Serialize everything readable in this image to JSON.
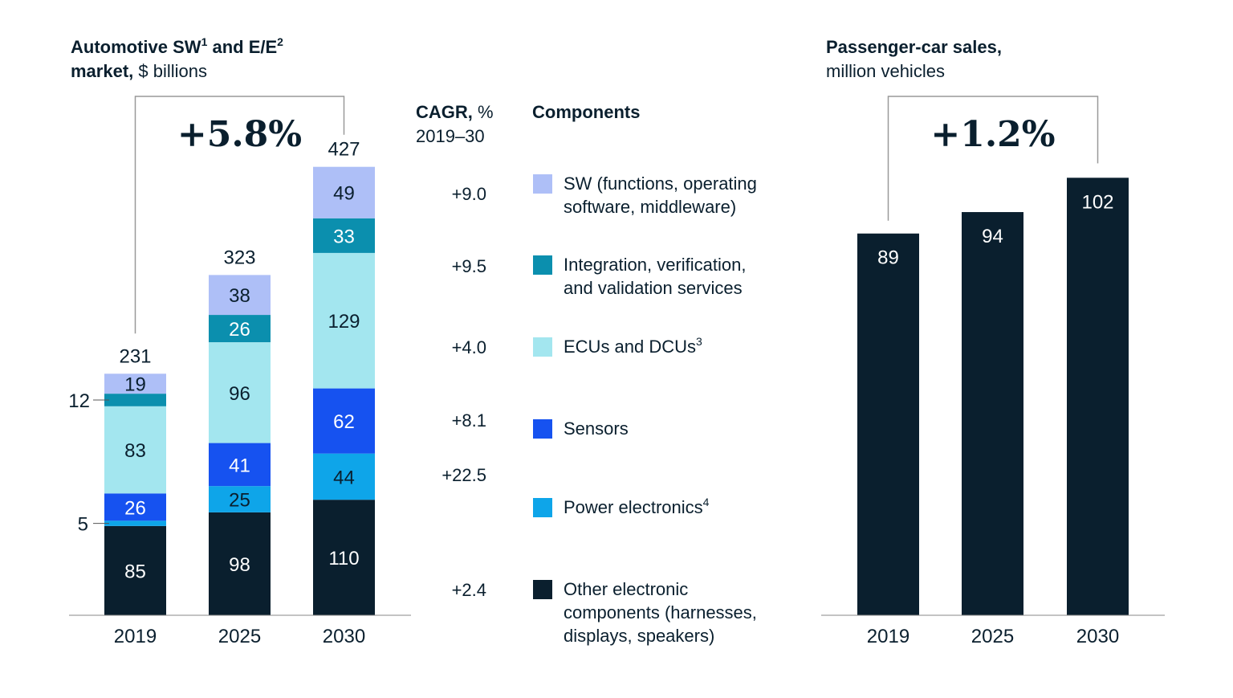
{
  "chart_data": [
    {
      "type": "bar",
      "stacked": true,
      "title_bold": "Automotive SW",
      "title_sup1": "1",
      "title_mid": " and E/E",
      "title_sup2": "2",
      "title_line2_bold": "market,",
      "title_line2_unit": " $ billions",
      "cagr_overall": "+5.8%",
      "categories": [
        "2019",
        "2025",
        "2030"
      ],
      "totals": [
        "231",
        "323",
        "427"
      ],
      "ylim": [
        0,
        430
      ],
      "series": [
        {
          "name": "Other electronic components (harnesses, displays, speakers)",
          "color": "#0a1f2e",
          "label_color": "#ffffff",
          "values": [
            85,
            98,
            110
          ],
          "labels": [
            "85",
            "98",
            "110"
          ]
        },
        {
          "name": "Power electronics",
          "color": "#0ea5e9",
          "label_color": "#0a1f2e",
          "values": [
            5,
            25,
            44
          ],
          "labels": [
            "",
            "25",
            "44"
          ]
        },
        {
          "name": "Sensors",
          "color": "#1652f0",
          "label_color": "#ffffff",
          "values": [
            26,
            41,
            62
          ],
          "labels": [
            "26",
            "41",
            "62"
          ]
        },
        {
          "name": "ECUs and DCUs",
          "color": "#a3e6ef",
          "label_color": "#0a1f2e",
          "values": [
            83,
            96,
            129
          ],
          "labels": [
            "83",
            "96",
            "129"
          ]
        },
        {
          "name": "Integration, verification, and validation services",
          "color": "#0b8fae",
          "label_color": "#ffffff",
          "values": [
            12,
            26,
            33
          ],
          "labels": [
            "",
            "26",
            "33"
          ]
        },
        {
          "name": "SW (functions, operating software, middleware)",
          "color": "#aebff7",
          "label_color": "#0a1f2e",
          "values": [
            19,
            38,
            49
          ],
          "labels": [
            "19",
            "38",
            "49"
          ]
        }
      ],
      "callouts": [
        "12",
        "5"
      ]
    },
    {
      "type": "bar",
      "title_bold": "Passenger-car sales,",
      "title_unit": "million vehicles",
      "cagr_overall": "+1.2%",
      "categories": [
        "2019",
        "2025",
        "2030"
      ],
      "values": [
        89,
        94,
        102
      ],
      "labels": [
        "89",
        "94",
        "102"
      ],
      "color": "#0a1f2e",
      "ylim": [
        0,
        102
      ]
    }
  ],
  "legend": {
    "cagr_header_bold": "CAGR,",
    "cagr_header_unit": " %",
    "cagr_period": "2019–30",
    "components_header": "Components",
    "items": [
      {
        "cagr": "+9.0",
        "color": "#aebff7",
        "lines": [
          "SW (functions, operating",
          "software, middleware)"
        ],
        "sup": ""
      },
      {
        "cagr": "+9.5",
        "color": "#0b8fae",
        "lines": [
          "Integration, verification,",
          "and validation services"
        ],
        "sup": ""
      },
      {
        "cagr": "+4.0",
        "color": "#a3e6ef",
        "lines": [
          "ECUs and DCUs"
        ],
        "sup": "3"
      },
      {
        "cagr": "+8.1",
        "color": "#1652f0",
        "lines": [
          "Sensors"
        ],
        "sup": ""
      },
      {
        "cagr": "+22.5",
        "color": "#0ea5e9",
        "lines": [
          "Power electronics"
        ],
        "sup": "4"
      },
      {
        "cagr": "+2.4",
        "color": "#0a1f2e",
        "lines": [
          "Other electronic",
          "components (harnesses,",
          "displays, speakers)"
        ],
        "sup": ""
      }
    ]
  }
}
